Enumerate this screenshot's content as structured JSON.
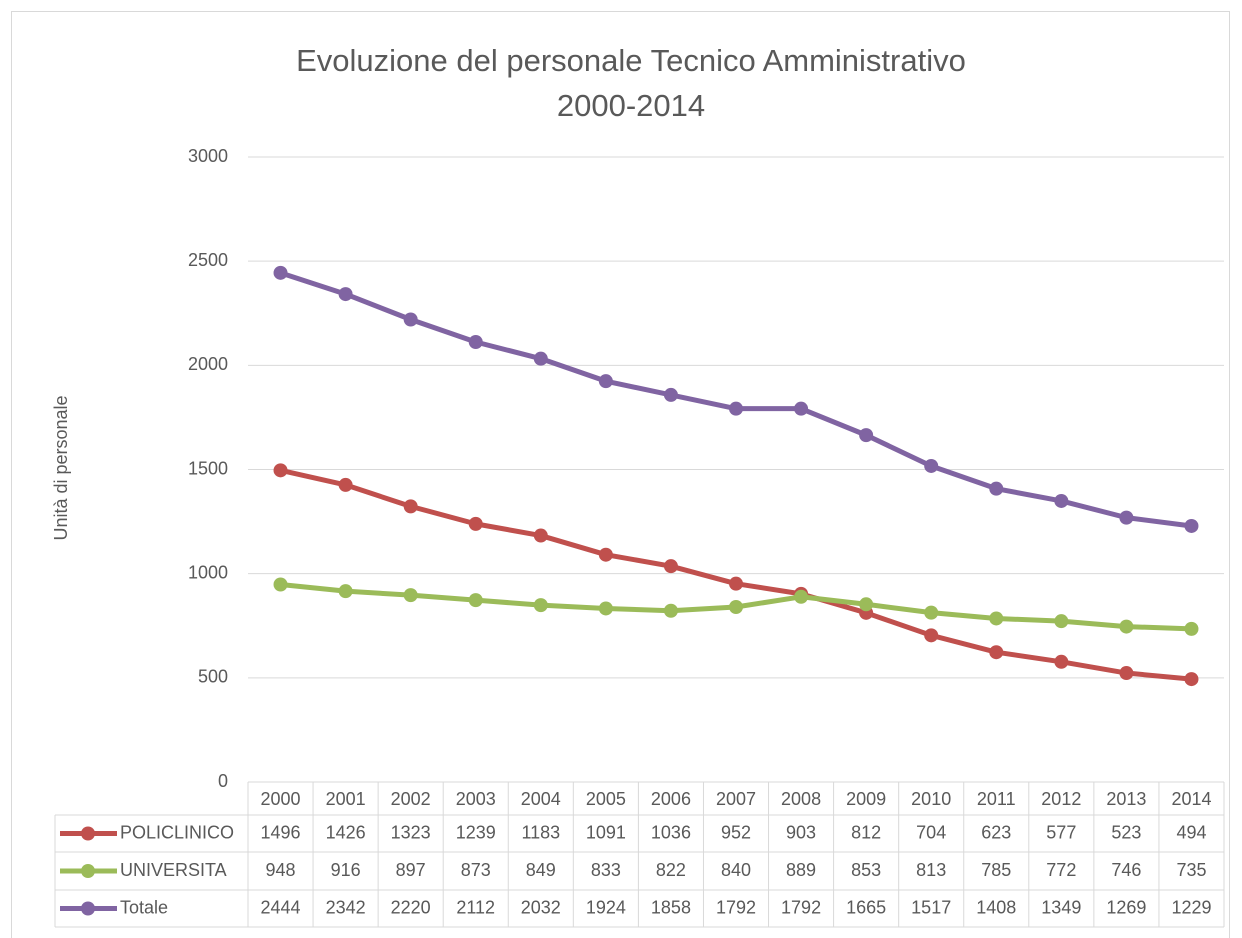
{
  "chart_data": {
    "type": "line",
    "title": "Evoluzione del personale Tecnico Amministrativo\n2000-2014",
    "y_label": "Unità di personale",
    "categories": [
      "2000",
      "2001",
      "2002",
      "2003",
      "2004",
      "2005",
      "2006",
      "2007",
      "2008",
      "2009",
      "2010",
      "2011",
      "2012",
      "2013",
      "2014"
    ],
    "series": [
      {
        "name": "POLICLINICO",
        "color": "#c0504d",
        "values": [
          1496,
          1426,
          1323,
          1239,
          1183,
          1091,
          1036,
          952,
          903,
          812,
          704,
          623,
          577,
          523,
          494
        ]
      },
      {
        "name": "UNIVERSITA",
        "color": "#9bbb59",
        "values": [
          948,
          916,
          897,
          873,
          849,
          833,
          822,
          840,
          889,
          853,
          813,
          785,
          772,
          746,
          735
        ]
      },
      {
        "name": "Totale",
        "color": "#8064a2",
        "values": [
          2444,
          2342,
          2220,
          2112,
          2032,
          1924,
          1858,
          1792,
          1792,
          1665,
          1517,
          1408,
          1349,
          1269,
          1229
        ]
      }
    ],
    "ylim": [
      0,
      3000
    ],
    "yticks": [
      0,
      500,
      1000,
      1500,
      2000,
      2500,
      3000
    ],
    "grid": true
  }
}
